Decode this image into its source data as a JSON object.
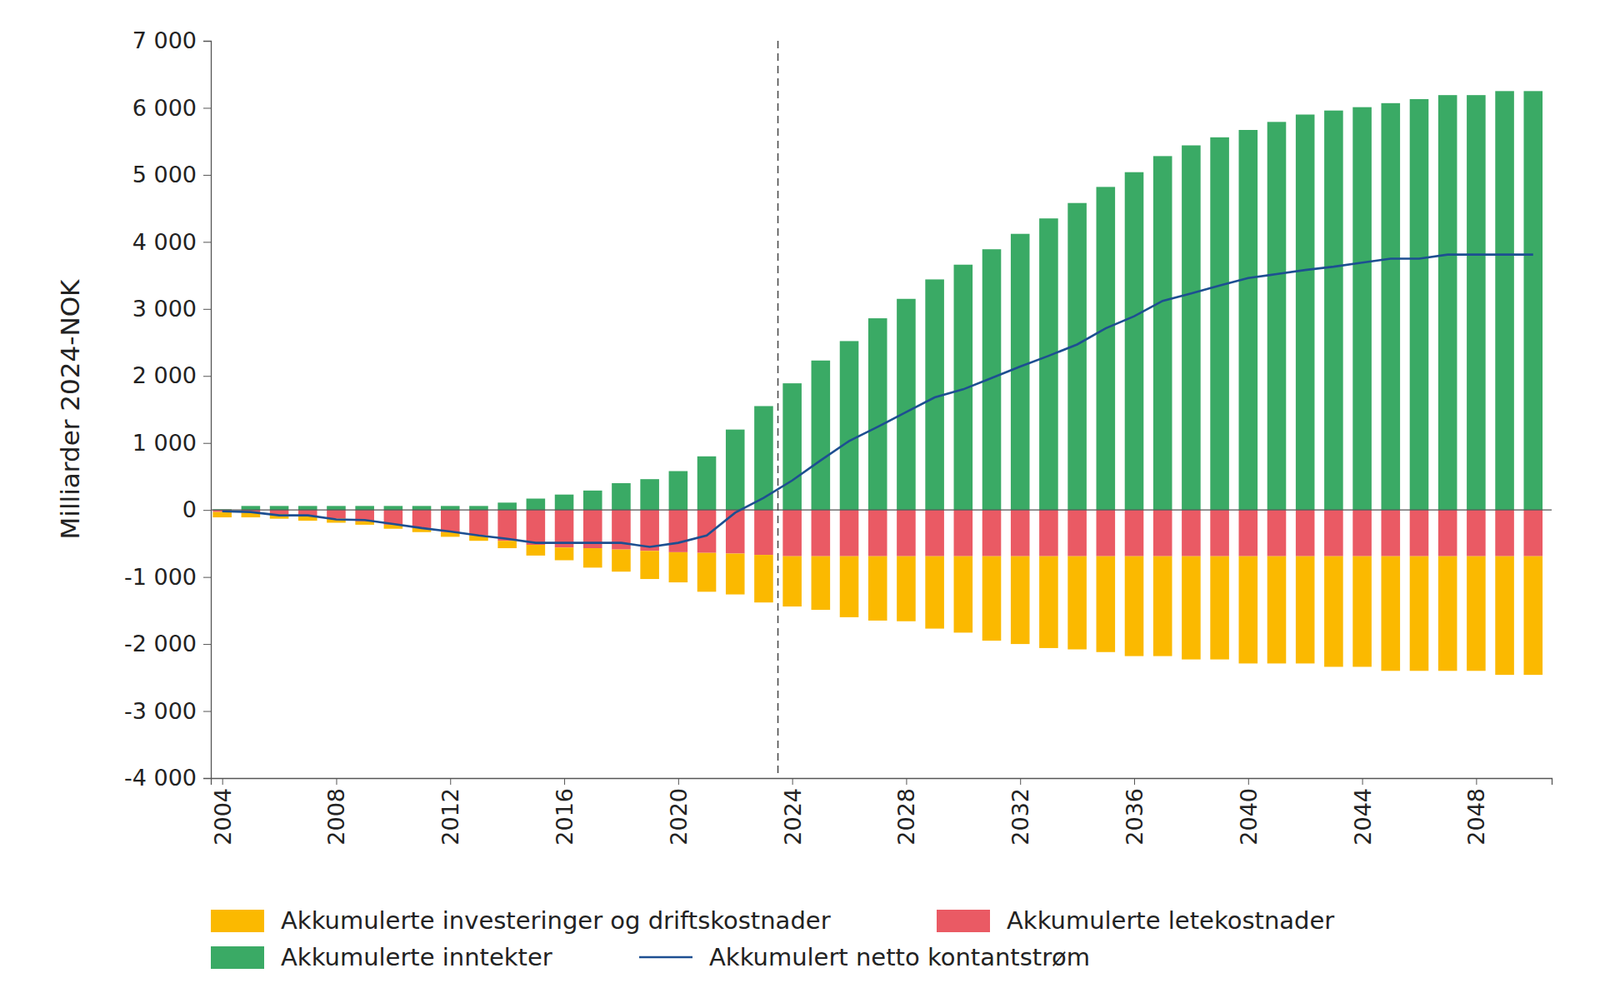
{
  "chart_data": {
    "type": "bar",
    "stacked": true,
    "grid": false,
    "legend": "bottom",
    "ylabel": "Milliarder 2024-NOK",
    "x": [
      2004,
      2005,
      2006,
      2007,
      2008,
      2009,
      2010,
      2011,
      2012,
      2013,
      2014,
      2015,
      2016,
      2017,
      2018,
      2019,
      2020,
      2021,
      2022,
      2023,
      2024,
      2025,
      2026,
      2027,
      2028,
      2029,
      2030,
      2031,
      2032,
      2033,
      2034,
      2035,
      2036,
      2037,
      2038,
      2039,
      2040,
      2041,
      2042,
      2043,
      2044,
      2045,
      2046,
      2047,
      2048,
      2049,
      2050
    ],
    "xlim": [
      2003.6,
      2050.65
    ],
    "xticks": [
      2004,
      2008,
      2012,
      2016,
      2020,
      2024,
      2028,
      2032,
      2036,
      2040,
      2044,
      2048
    ],
    "ylim": [
      -4000,
      7000
    ],
    "yticks": [
      {
        "value": -4000,
        "label": "-4 000"
      },
      {
        "value": -3000,
        "label": "-3 000"
      },
      {
        "value": -2000,
        "label": "-2 000"
      },
      {
        "value": -1000,
        "label": "-1 000"
      },
      0,
      {
        "value": 1000,
        "label": "1 000"
      },
      {
        "value": 2000,
        "label": "2 000"
      },
      {
        "value": 3000,
        "label": "3 000"
      },
      {
        "value": 4000,
        "label": "4 000"
      },
      {
        "value": 5000,
        "label": "5 000"
      },
      {
        "value": 6000,
        "label": "6 000"
      },
      {
        "value": 7000,
        "label": "7 000"
      }
    ],
    "annotations": [
      {
        "x": 2023.5,
        "line_style": "dashed"
      }
    ],
    "series": [
      {
        "name": "Akkumulerte investeringer og driftskostnader",
        "type": "bar",
        "color": "#fbb900",
        "values": [
          -80,
          -70,
          -70,
          -70,
          -60,
          -50,
          -60,
          -60,
          -70,
          -80,
          -110,
          -160,
          -190,
          -290,
          -330,
          -420,
          -450,
          -580,
          -610,
          -710,
          -750,
          -800,
          -910,
          -960,
          -970,
          -1080,
          -1140,
          -1260,
          -1310,
          -1370,
          -1390,
          -1430,
          -1490,
          -1490,
          -1540,
          -1540,
          -1600,
          -1600,
          -1600,
          -1650,
          -1650,
          -1710,
          -1710,
          -1710,
          -1710,
          -1770,
          -1770
        ]
      },
      {
        "name": "Akkumulerte letekostnader",
        "type": "bar",
        "color": "#ea5a64",
        "values": [
          -30,
          -40,
          -60,
          -90,
          -130,
          -170,
          -220,
          -270,
          -330,
          -380,
          -460,
          -520,
          -560,
          -570,
          -590,
          -610,
          -630,
          -640,
          -650,
          -670,
          -690,
          -690,
          -690,
          -690,
          -690,
          -690,
          -690,
          -690,
          -690,
          -690,
          -690,
          -690,
          -690,
          -690,
          -690,
          -690,
          -690,
          -690,
          -690,
          -690,
          -690,
          -690,
          -690,
          -690,
          -690,
          -690,
          -690
        ]
      },
      {
        "name": "Akkumulerte inntekter",
        "type": "bar",
        "color": "#3aaa65",
        "values": [
          10,
          60,
          60,
          60,
          60,
          60,
          60,
          60,
          60,
          60,
          110,
          170,
          230,
          290,
          400,
          460,
          580,
          800,
          1200,
          1550,
          1890,
          2230,
          2520,
          2860,
          3150,
          3440,
          3660,
          3890,
          4120,
          4350,
          4580,
          4820,
          5040,
          5280,
          5440,
          5560,
          5670,
          5790,
          5900,
          5960,
          6010,
          6070,
          6130,
          6190,
          6190,
          6250,
          6250
        ]
      },
      {
        "name": "Akkumulert netto kontantstrøm",
        "type": "line",
        "color": "#1d4f91",
        "line_style": "solid",
        "values": [
          -20,
          -30,
          -80,
          -80,
          -140,
          -150,
          -210,
          -270,
          -320,
          -380,
          -430,
          -490,
          -490,
          -490,
          -490,
          -550,
          -490,
          -380,
          -40,
          180,
          440,
          740,
          1030,
          1240,
          1460,
          1680,
          1800,
          1970,
          2140,
          2300,
          2470,
          2710,
          2890,
          3120,
          3230,
          3350,
          3460,
          3520,
          3580,
          3630,
          3690,
          3750,
          3750,
          3810,
          3810,
          3810,
          3810
        ]
      }
    ]
  }
}
